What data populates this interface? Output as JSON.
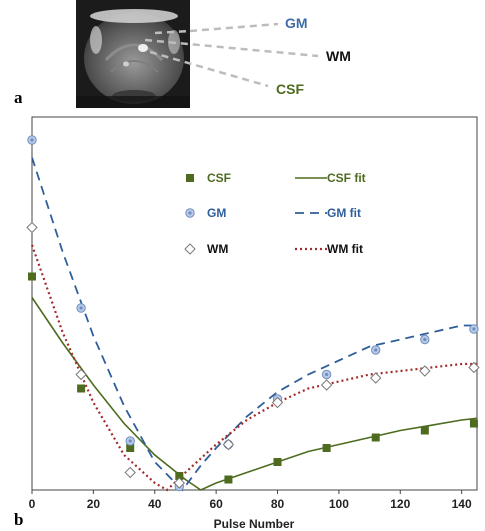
{
  "panel_a": {
    "label": "a",
    "image_icon": "brain-mri-slice",
    "callouts": [
      {
        "text": "GM",
        "color": "#3f6ea6"
      },
      {
        "text": "WM",
        "color": "#111111"
      },
      {
        "text": "CSF",
        "color": "#4e6b1f"
      }
    ]
  },
  "panel_b": {
    "label": "b"
  },
  "colors": {
    "csf": "#4e6b1f",
    "gm": "#2f5f9a",
    "gm_marker_fill": "#b9c9e6",
    "wm": "#a32b2b",
    "wm_marker": "#7a7a7a",
    "callout_line": "#bdbdbd"
  },
  "chart_data": {
    "type": "scatter",
    "xlabel": "Pulse Number",
    "ylabel": "",
    "xlim": [
      0,
      145
    ],
    "ylim": [
      0,
      1
    ],
    "x_ticks": [
      0,
      20,
      40,
      60,
      80,
      100,
      120,
      140
    ],
    "grid": false,
    "legend_position": "top-right",
    "series": [
      {
        "name": "CSF",
        "kind": "points",
        "marker": "square",
        "x": [
          0,
          16,
          32,
          48,
          64,
          80,
          96,
          112,
          128,
          144
        ],
        "y": [
          0.61,
          0.29,
          0.12,
          0.04,
          0.03,
          0.08,
          0.12,
          0.15,
          0.17,
          0.19
        ]
      },
      {
        "name": "GM",
        "kind": "points",
        "marker": "circle",
        "x": [
          0,
          16,
          32,
          48,
          64,
          80,
          96,
          112,
          128,
          144
        ],
        "y": [
          1.0,
          0.52,
          0.14,
          0.01,
          0.13,
          0.26,
          0.33,
          0.4,
          0.43,
          0.46
        ]
      },
      {
        "name": "WM",
        "kind": "points",
        "marker": "diamond",
        "x": [
          0,
          16,
          32,
          48,
          64,
          80,
          96,
          112,
          128,
          144
        ],
        "y": [
          0.75,
          0.33,
          0.05,
          0.02,
          0.13,
          0.25,
          0.3,
          0.32,
          0.34,
          0.35
        ]
      },
      {
        "name": "CSF fit",
        "kind": "line",
        "style": "solid",
        "x": [
          0,
          10,
          20,
          30,
          40,
          50,
          55,
          60,
          70,
          80,
          90,
          100,
          110,
          120,
          130,
          140,
          145
        ],
        "y": [
          0.55,
          0.42,
          0.3,
          0.19,
          0.1,
          0.03,
          0.0,
          0.02,
          0.05,
          0.08,
          0.11,
          0.13,
          0.15,
          0.17,
          0.185,
          0.2,
          0.205
        ]
      },
      {
        "name": "GM fit",
        "kind": "line",
        "style": "dashed",
        "x": [
          0,
          10,
          20,
          30,
          40,
          49,
          55,
          60,
          70,
          80,
          90,
          100,
          110,
          120,
          130,
          140,
          145
        ],
        "y": [
          0.95,
          0.68,
          0.44,
          0.24,
          0.08,
          0.0,
          0.07,
          0.12,
          0.21,
          0.28,
          0.33,
          0.37,
          0.41,
          0.43,
          0.45,
          0.47,
          0.47
        ]
      },
      {
        "name": "WM fit",
        "kind": "line",
        "style": "dotted",
        "x": [
          0,
          10,
          20,
          30,
          40,
          44,
          50,
          60,
          70,
          80,
          90,
          100,
          110,
          120,
          130,
          140,
          145
        ],
        "y": [
          0.7,
          0.45,
          0.25,
          0.1,
          0.02,
          0.0,
          0.05,
          0.13,
          0.2,
          0.25,
          0.29,
          0.31,
          0.33,
          0.34,
          0.35,
          0.36,
          0.36
        ]
      }
    ],
    "legend": [
      {
        "label": "CSF",
        "series": "CSF"
      },
      {
        "label": "CSF fit",
        "series": "CSF fit"
      },
      {
        "label": "GM",
        "series": "GM"
      },
      {
        "label": "GM fit",
        "series": "GM fit"
      },
      {
        "label": "WM",
        "series": "WM"
      },
      {
        "label": "WM fit",
        "series": "WM fit"
      }
    ]
  }
}
